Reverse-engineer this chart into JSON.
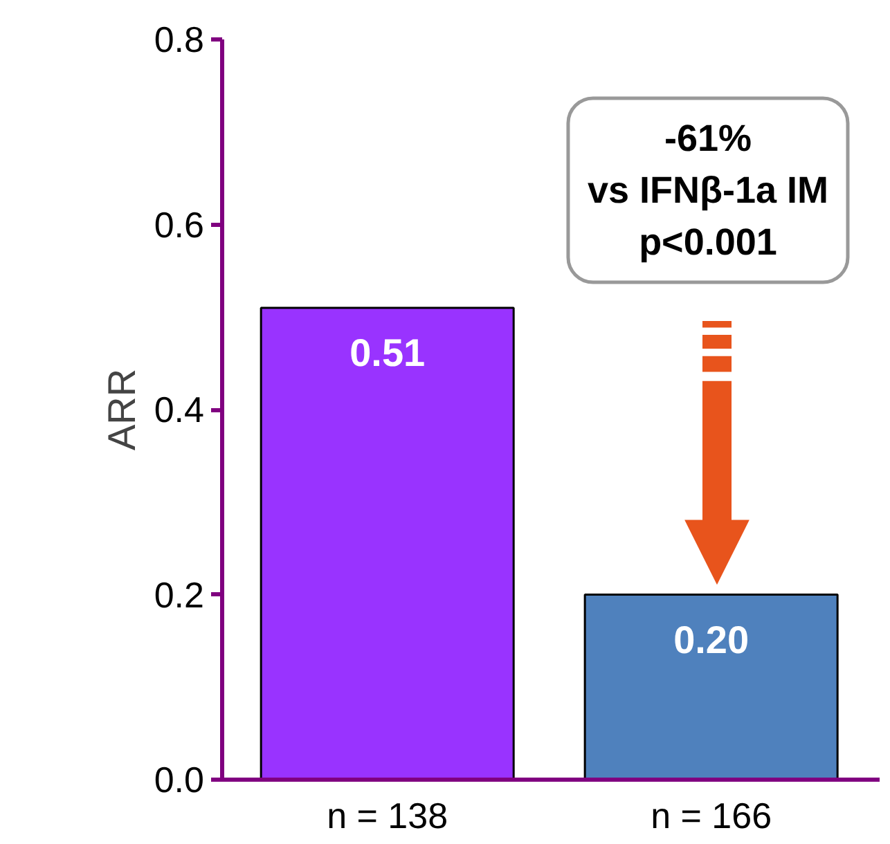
{
  "chart_data": {
    "type": "bar",
    "categories": [
      "n = 138",
      "n = 166"
    ],
    "values": [
      0.51,
      0.2
    ],
    "colors": [
      "#9933ff",
      "#4f81bd"
    ],
    "ylabel": "ARR",
    "ylim": [
      0,
      0.8
    ],
    "yticks": [
      {
        "value": 0,
        "label": "0.0"
      },
      {
        "value": 0.2,
        "label": "0.2"
      },
      {
        "value": 0.4,
        "label": "0.4"
      },
      {
        "value": 0.6,
        "label": "0.6"
      },
      {
        "value": 0.8,
        "label": "0.8"
      }
    ],
    "value_labels": [
      "0.51",
      "0.20"
    ],
    "grid": false,
    "annotations": [
      "-61%\nvs IFNβ-1a IM\np<0.001"
    ]
  }
}
